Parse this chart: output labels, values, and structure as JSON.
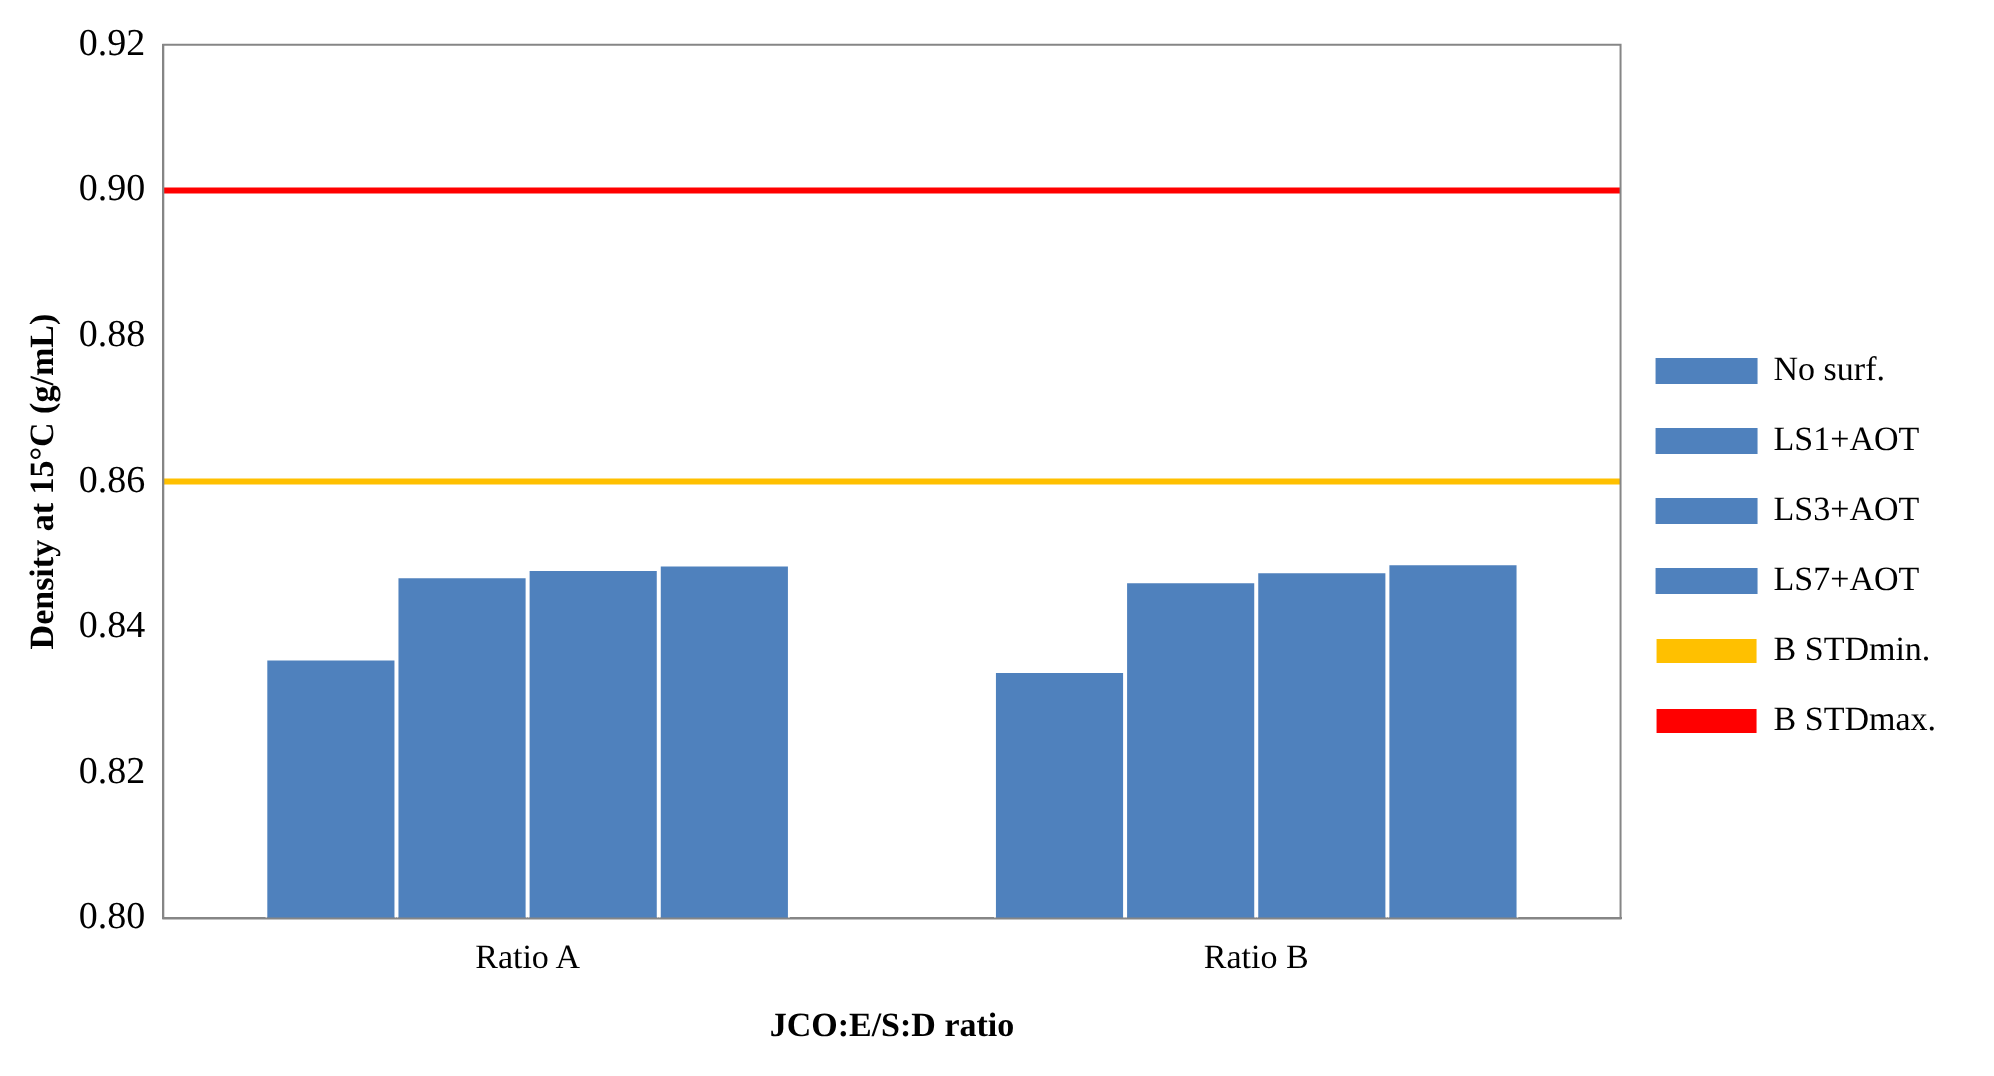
{
  "chart_data": {
    "type": "bar",
    "xlabel": "JCO:E/S:D ratio",
    "ylabel": "Density at 15°C (g/mL)",
    "categories": [
      "Ratio A",
      "Ratio B"
    ],
    "series": [
      {
        "name": "No surf.",
        "color": "#4f81bd",
        "values": [
          0.8357,
          0.834
        ]
      },
      {
        "name": "LS1+AOT",
        "color": "#4f81bd",
        "values": [
          0.847,
          0.8463
        ]
      },
      {
        "name": "LS3+AOT",
        "color": "#4f81bd",
        "values": [
          0.848,
          0.8477
        ]
      },
      {
        "name": "LS7+AOT",
        "color": "#4f81bd",
        "values": [
          0.8486,
          0.8488
        ]
      }
    ],
    "ylim": [
      0.8,
      0.92
    ],
    "yticks": [
      {
        "value": 0.8,
        "label": "0.80"
      },
      {
        "value": 0.82,
        "label": "0.82"
      },
      {
        "value": 0.84,
        "label": "0.84"
      },
      {
        "value": 0.86,
        "label": "0.86"
      },
      {
        "value": 0.88,
        "label": "0.88"
      },
      {
        "value": 0.9,
        "label": "0.90"
      },
      {
        "value": 0.92,
        "label": "0.92"
      }
    ],
    "ref_lines": [
      {
        "axis": "y",
        "value": 0.86,
        "label": "B STDmin.",
        "color": "#ffc000"
      },
      {
        "axis": "y",
        "value": 0.9,
        "label": "B STDmax.",
        "color": "#ff0000"
      }
    ],
    "grid": false,
    "legend": "right"
  }
}
